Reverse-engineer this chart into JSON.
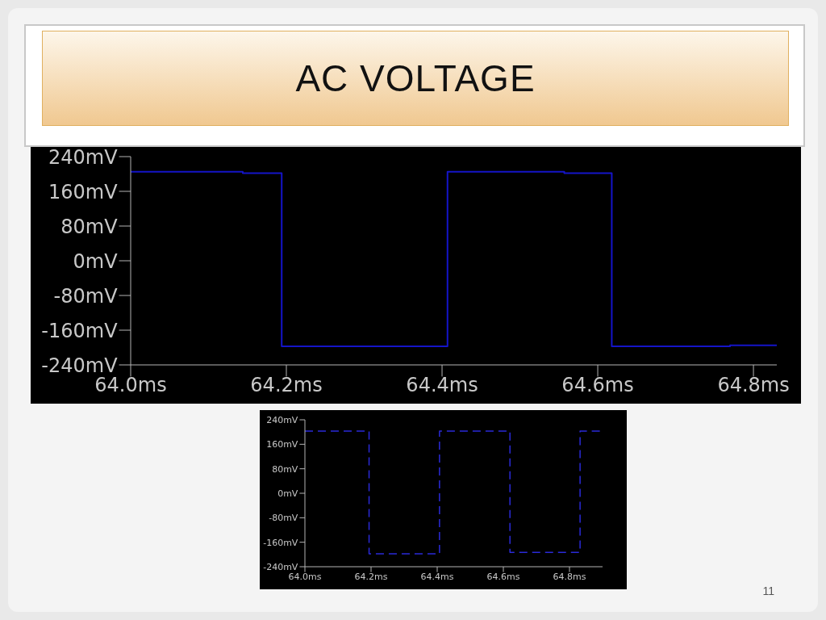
{
  "chart_data": [
    {
      "type": "step",
      "title": "AC VOLTAGE",
      "x": [
        64.0,
        64.144,
        64.194,
        64.407,
        64.557,
        64.618,
        64.77,
        64.83
      ],
      "series": [
        {
          "color": "#1414c8",
          "values": [
            205,
            202,
            -197,
            205,
            202,
            -197,
            -195,
            -195
          ]
        }
      ],
      "xlim": [
        64.0,
        64.83
      ],
      "xticks": [
        {
          "value": 64.0,
          "label": "64.0ms"
        },
        {
          "value": 64.2,
          "label": "64.2ms"
        },
        {
          "value": 64.4,
          "label": "64.4ms"
        },
        {
          "value": 64.6,
          "label": "64.6ms"
        },
        {
          "value": 64.8,
          "label": "64.8ms"
        }
      ],
      "ylim": [
        -240,
        240
      ],
      "yticks": [
        {
          "value": 240,
          "label": "240mV"
        },
        {
          "value": 160,
          "label": "160mV"
        },
        {
          "value": 80,
          "label": "80mV"
        },
        {
          "value": 0,
          "label": "0mV"
        },
        {
          "value": -80,
          "label": "-80mV"
        },
        {
          "value": -160,
          "label": "-160mV"
        },
        {
          "value": -240,
          "label": "-240mV"
        }
      ],
      "grid": false,
      "legend": false,
      "marker": "none",
      "line_style": "solid",
      "annotations": [
        "11"
      ]
    },
    {
      "type": "step",
      "x": [
        64.0,
        64.194,
        64.407,
        64.62,
        64.832,
        64.9
      ],
      "series": [
        {
          "color": "#2a2ad8",
          "values": [
            203,
            -198,
            203,
            -193,
            203,
            203
          ]
        }
      ],
      "xlim": [
        64.0,
        64.9
      ],
      "xticks": [
        {
          "value": 64.0,
          "label": "64.0ms"
        },
        {
          "value": 64.2,
          "label": "64.2ms"
        },
        {
          "value": 64.4,
          "label": "64.4ms"
        },
        {
          "value": 64.6,
          "label": "64.6ms"
        },
        {
          "value": 64.8,
          "label": "64.8ms"
        }
      ],
      "ylim": [
        -240,
        240
      ],
      "yticks": [
        {
          "value": 240,
          "label": "240mV"
        },
        {
          "value": 160,
          "label": "160mV"
        },
        {
          "value": 80,
          "label": "80mV"
        },
        {
          "value": 0,
          "label": "0mV"
        },
        {
          "value": -80,
          "label": "-80mV"
        },
        {
          "value": -160,
          "label": "-160mV"
        },
        {
          "value": -240,
          "label": "-240mV"
        }
      ],
      "grid": false,
      "legend": false,
      "marker": "none",
      "line_style": "dashed"
    }
  ]
}
